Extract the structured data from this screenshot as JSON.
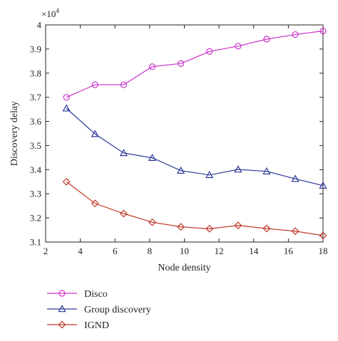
{
  "chart_data": {
    "type": "line",
    "title": "",
    "xlabel": "Node density",
    "ylabel": "Discovery delay",
    "y_multiplier_label": "×10",
    "y_multiplier_exponent": "4",
    "xlim": [
      2,
      18
    ],
    "ylim": [
      3.1,
      4.0
    ],
    "x_ticks": [
      2,
      4,
      6,
      8,
      10,
      12,
      14,
      16,
      18
    ],
    "y_ticks": [
      3.1,
      3.2,
      3.3,
      3.4,
      3.5,
      3.6,
      3.7,
      3.8,
      3.9,
      4.0
    ],
    "y_tick_labels": [
      "3.1",
      "3.2",
      "3.3",
      "3.4",
      "3.5",
      "3.6",
      "3.7",
      "3.8",
      "3.9",
      "4"
    ],
    "grid": false,
    "legend_position": "below",
    "x": [
      3.2,
      4.85,
      6.5,
      8.15,
      9.8,
      11.45,
      13.1,
      14.75,
      16.4,
      18.0
    ],
    "series": [
      {
        "name": "Disco",
        "color": "#cc33cc",
        "marker": "circle",
        "values": [
          3.7,
          3.752,
          3.752,
          3.827,
          3.84,
          3.89,
          3.912,
          3.941,
          3.96,
          3.975
        ]
      },
      {
        "name": "Group discovery",
        "color": "#2e3a99",
        "marker": "triangle",
        "values": [
          3.654,
          3.548,
          3.469,
          3.449,
          3.396,
          3.378,
          3.401,
          3.393,
          3.362,
          3.334
        ]
      },
      {
        "name": "IGND",
        "color": "#c0392b",
        "marker": "diamond",
        "values": [
          3.35,
          3.26,
          3.218,
          3.182,
          3.163,
          3.155,
          3.169,
          3.156,
          3.145,
          3.127
        ]
      }
    ]
  }
}
